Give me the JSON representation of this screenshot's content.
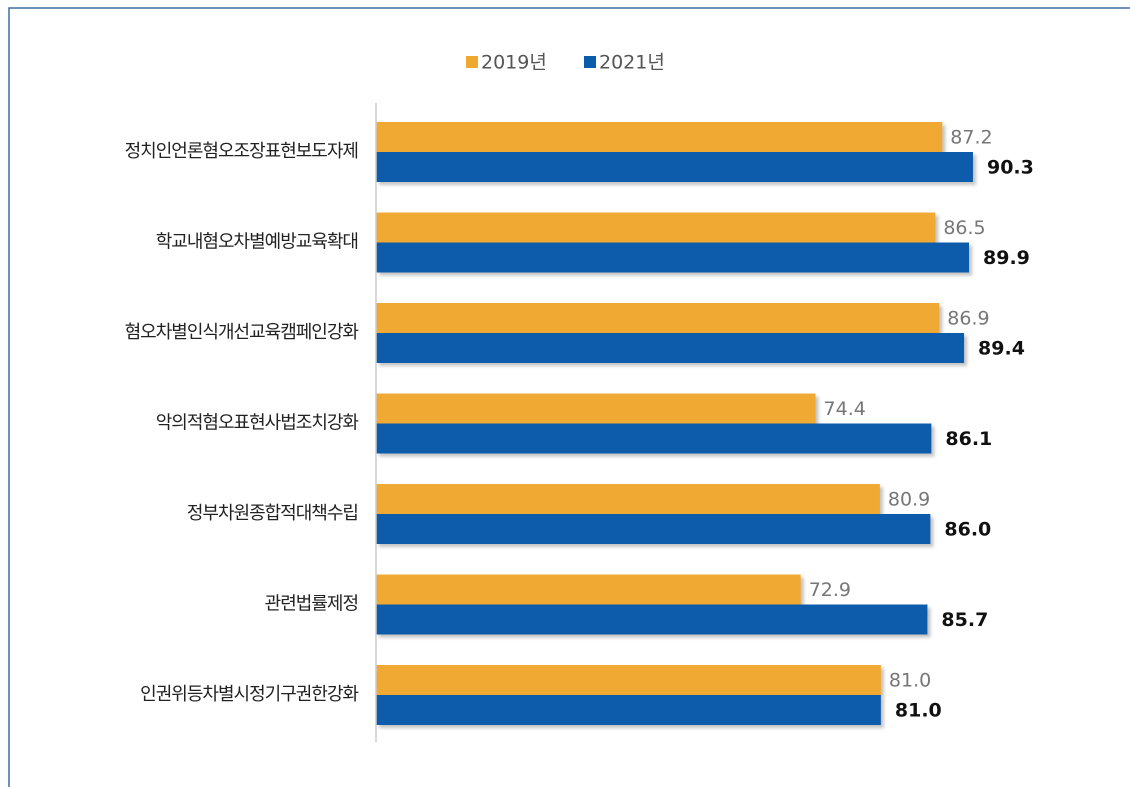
{
  "chart_data": {
    "type": "bar",
    "orientation": "horizontal",
    "categories": [
      "정치인언론혐오조장표현보도자제",
      "학교내혐오차별예방교육확대",
      "혐오차별인식개선교육캠페인강화",
      "악의적혐오표현사법조치강화",
      "정부차원종합적대책수립",
      "관련법률제정",
      "인권위등차별시정기구권한강화"
    ],
    "series": [
      {
        "name": "2019년",
        "color": "#f0a930",
        "values": [
          87.2,
          86.5,
          86.9,
          74.4,
          80.9,
          72.9,
          81.0
        ],
        "value_labels": [
          "87.2",
          "86.5",
          "86.9",
          "74.4",
          "80.9",
          "72.9",
          "81.0"
        ]
      },
      {
        "name": "2021년",
        "color": "#0b5bab",
        "values": [
          90.3,
          89.9,
          89.4,
          86.1,
          86.0,
          85.7,
          81.0
        ],
        "value_labels": [
          "90.3",
          "89.9",
          "89.4",
          "86.1",
          "86.0",
          "85.7",
          "81.0"
        ]
      }
    ],
    "xlim": [
      30,
      100
    ],
    "legend": "top"
  }
}
